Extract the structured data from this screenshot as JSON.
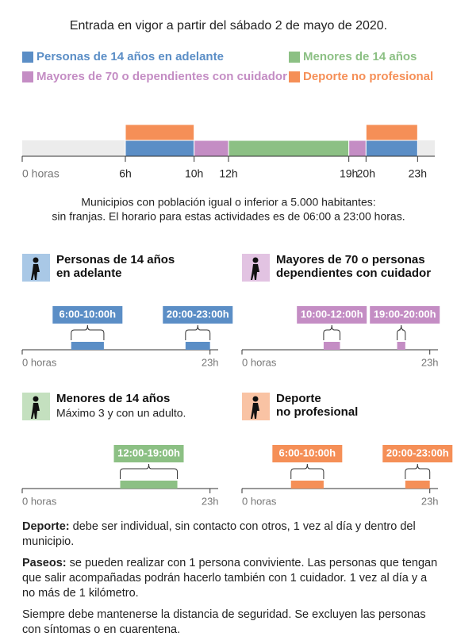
{
  "subtitle": "Entrada en vigor a partir del sábado 2 de mayo de 2020.",
  "legend": [
    {
      "name": "Personas de 14 años en adelante",
      "color": "#5b8ec6"
    },
    {
      "name": "Menores de 14 años",
      "color": "#8cc084"
    },
    {
      "name": "Mayores de 70 o dependientes con cuidador",
      "color": "#c48dc4"
    },
    {
      "name": "Deporte no profesional",
      "color": "#f58f57"
    }
  ],
  "timeline": {
    "xlim": [
      0,
      24
    ],
    "ticks": [
      {
        "value": 0,
        "label": "0 horas"
      },
      {
        "value": 6,
        "label": "6h"
      },
      {
        "value": 10,
        "label": "10h"
      },
      {
        "value": 12,
        "label": "12h"
      },
      {
        "value": 19,
        "label": "19h"
      },
      {
        "value": 20,
        "label": "20h"
      },
      {
        "value": 23,
        "label": "23h"
      }
    ],
    "top_row": [
      {
        "start": 6,
        "end": 10,
        "legend": 3
      },
      {
        "start": 20,
        "end": 23,
        "legend": 3
      }
    ],
    "bottom_row": [
      {
        "start": 6,
        "end": 10,
        "legend": 0
      },
      {
        "start": 10,
        "end": 12,
        "legend": 2
      },
      {
        "start": 12,
        "end": 19,
        "legend": 1
      },
      {
        "start": 19,
        "end": 20,
        "legend": 2
      },
      {
        "start": 20,
        "end": 23,
        "legend": 0
      }
    ]
  },
  "municipios": [
    "Municipios con población igual o inferior a 5.000 habitantes:",
    "sin franjas. El horario para estas actividades es de 06:00 a 23:00 horas."
  ],
  "panels": [
    {
      "title": [
        "Personas de 14 años",
        "en adelante"
      ],
      "legend": 0,
      "icon_bg": "#a9c8e6",
      "ranges": [
        {
          "label": "6:00-10:00h",
          "start": 6,
          "end": 10
        },
        {
          "label": "20:00-23:00h",
          "start": 20,
          "end": 23
        }
      ]
    },
    {
      "title": [
        "Mayores de 70 o personas",
        "dependientes con cuidador"
      ],
      "legend": 2,
      "icon_bg": "#e2c3e2",
      "ranges": [
        {
          "label": "10:00-12:00h",
          "start": 10,
          "end": 12
        },
        {
          "label": "19:00-20:00h",
          "start": 19,
          "end": 20
        }
      ]
    },
    {
      "title": [
        "Menores de 14 años"
      ],
      "note": "Máximo 3 y con un adulto.",
      "legend": 1,
      "icon_bg": "#c4e0bf",
      "ranges": [
        {
          "label": "12:00-19:00h",
          "start": 12,
          "end": 19
        }
      ]
    },
    {
      "title": [
        "Deporte",
        "no profesional"
      ],
      "legend": 3,
      "icon_bg": "#f9c3a4",
      "ranges": [
        {
          "label": "6:00-10:00h",
          "start": 6,
          "end": 10
        },
        {
          "label": "20:00-23:00h",
          "start": 20,
          "end": 23
        }
      ]
    }
  ],
  "panel_axis": {
    "xlim": [
      0,
      24
    ],
    "ticks": [
      {
        "value": 0,
        "label": "0 horas"
      },
      {
        "value": 23,
        "label": "23h"
      }
    ]
  },
  "notes": [
    {
      "bold": "Deporte:",
      "text": " debe ser individual, sin contacto con otros, 1 vez al día y dentro del municipio."
    },
    {
      "bold": "Paseos:",
      "text": " se pueden realizar con 1 persona conviviente. Las personas que tengan que salir acompañadas podrán hacerlo también con 1 cuidador. 1 vez al día y a no más de 1 kilómetro."
    },
    {
      "text": "Siempre debe mantenerse la distancia de seguridad. Se excluyen las personas con síntomas o en cuarentena."
    }
  ]
}
